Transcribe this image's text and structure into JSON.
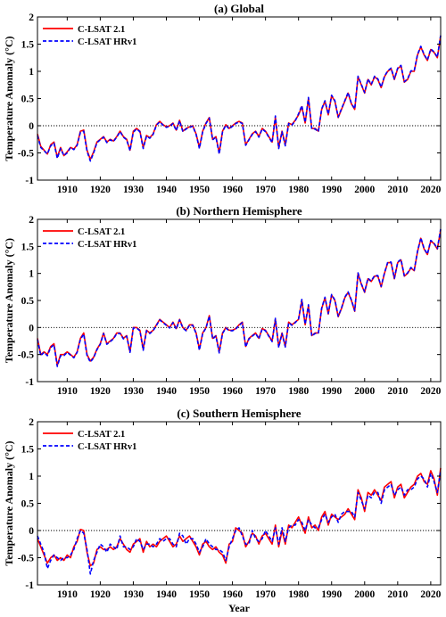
{
  "figure": {
    "ylabel": "Temperature Anomaly (°C)",
    "xlabel": "Year",
    "legend": [
      "C-LSAT 2.1",
      "C-LSAT HRv1"
    ],
    "colors": {
      "series1": "#ff0000",
      "series2": "#0000ff",
      "zero_line": "#000000"
    }
  },
  "chart_data": [
    {
      "type": "line",
      "title": "(a) Global",
      "xlabel": "",
      "ylabel": "Temperature Anomaly (°C)",
      "xlim": [
        1901,
        2023
      ],
      "ylim": [
        -1,
        2
      ],
      "xticks": [
        1910,
        1920,
        1930,
        1940,
        1950,
        1960,
        1970,
        1980,
        1990,
        2000,
        2010,
        2020
      ],
      "yticks": [
        -1,
        -0.5,
        0,
        0.5,
        1,
        1.5,
        2
      ],
      "legend_position": "top-left",
      "reference_line": 0,
      "x_start": 1901,
      "series": [
        {
          "name": "C-LSAT 2.1",
          "color": "#ff0000",
          "style": "solid",
          "values": [
            -0.15,
            -0.38,
            -0.45,
            -0.52,
            -0.35,
            -0.3,
            -0.58,
            -0.4,
            -0.55,
            -0.48,
            -0.4,
            -0.43,
            -0.35,
            -0.1,
            -0.08,
            -0.45,
            -0.62,
            -0.48,
            -0.3,
            -0.25,
            -0.2,
            -0.3,
            -0.25,
            -0.28,
            -0.2,
            -0.1,
            -0.2,
            -0.25,
            -0.45,
            -0.1,
            -0.05,
            -0.1,
            -0.4,
            -0.18,
            -0.22,
            -0.15,
            0.02,
            0.08,
            0.02,
            -0.02,
            0.0,
            0.05,
            -0.08,
            0.1,
            -0.1,
            -0.05,
            -0.02,
            0.0,
            -0.15,
            -0.4,
            -0.1,
            0.05,
            0.15,
            -0.25,
            -0.2,
            -0.5,
            -0.1,
            0.02,
            -0.05,
            0.0,
            0.05,
            0.08,
            0.05,
            -0.35,
            -0.25,
            -0.15,
            -0.1,
            -0.2,
            -0.05,
            -0.1,
            -0.2,
            -0.3,
            0.15,
            -0.4,
            -0.1,
            -0.35,
            0.05,
            0.02,
            0.1,
            0.2,
            0.35,
            0.05,
            0.5,
            -0.05,
            -0.05,
            -0.1,
            0.3,
            0.45,
            0.2,
            0.55,
            0.45,
            0.15,
            0.3,
            0.45,
            0.6,
            0.4,
            0.3,
            0.9,
            0.75,
            0.6,
            0.85,
            0.75,
            0.9,
            0.85,
            0.7,
            0.9,
            1.0,
            1.05,
            0.85,
            1.05,
            1.1,
            0.8,
            0.85,
            1.0,
            1.0,
            1.3,
            1.45,
            1.3,
            1.2,
            1.4,
            1.35,
            1.25,
            1.65
          ]
        },
        {
          "name": "C-LSAT HRv1",
          "color": "#0000ff",
          "style": "dashed",
          "values": [
            -0.18,
            -0.4,
            -0.46,
            -0.52,
            -0.37,
            -0.32,
            -0.6,
            -0.42,
            -0.55,
            -0.5,
            -0.4,
            -0.44,
            -0.36,
            -0.12,
            -0.1,
            -0.47,
            -0.65,
            -0.5,
            -0.31,
            -0.26,
            -0.21,
            -0.31,
            -0.26,
            -0.29,
            -0.21,
            -0.11,
            -0.21,
            -0.26,
            -0.46,
            -0.12,
            -0.06,
            -0.11,
            -0.42,
            -0.19,
            -0.23,
            -0.16,
            0.01,
            0.07,
            0.01,
            -0.03,
            -0.01,
            0.04,
            -0.09,
            0.09,
            -0.11,
            -0.06,
            -0.03,
            -0.01,
            -0.16,
            -0.42,
            -0.11,
            0.04,
            0.14,
            -0.26,
            -0.21,
            -0.52,
            -0.11,
            0.01,
            -0.06,
            -0.01,
            0.04,
            0.07,
            0.04,
            -0.36,
            -0.26,
            -0.16,
            -0.11,
            -0.21,
            -0.06,
            -0.11,
            -0.21,
            -0.31,
            0.18,
            -0.42,
            -0.11,
            -0.37,
            0.04,
            0.01,
            0.09,
            0.22,
            0.37,
            0.06,
            0.52,
            -0.06,
            -0.06,
            -0.11,
            0.31,
            0.46,
            0.21,
            0.56,
            0.46,
            0.16,
            0.31,
            0.46,
            0.61,
            0.41,
            0.31,
            0.91,
            0.76,
            0.61,
            0.86,
            0.76,
            0.91,
            0.86,
            0.71,
            0.91,
            1.01,
            1.06,
            0.86,
            1.06,
            1.11,
            0.81,
            0.86,
            1.01,
            1.01,
            1.31,
            1.46,
            1.31,
            1.21,
            1.41,
            1.36,
            1.26,
            1.66
          ]
        }
      ]
    },
    {
      "type": "line",
      "title": "(b) Northern Hemisphere",
      "xlabel": "",
      "ylabel": "Temperature Anomaly (°C)",
      "xlim": [
        1901,
        2023
      ],
      "ylim": [
        -1,
        2
      ],
      "xticks": [
        1910,
        1920,
        1930,
        1940,
        1950,
        1960,
        1970,
        1980,
        1990,
        2000,
        2010,
        2020
      ],
      "yticks": [
        -1,
        -0.5,
        0,
        0.5,
        1,
        1.5,
        2
      ],
      "legend_position": "top-left",
      "reference_line": 0,
      "x_start": 1901,
      "series": [
        {
          "name": "C-LSAT 2.1",
          "color": "#ff0000",
          "style": "solid",
          "values": [
            -0.2,
            -0.5,
            -0.45,
            -0.5,
            -0.35,
            -0.3,
            -0.7,
            -0.5,
            -0.5,
            -0.45,
            -0.5,
            -0.55,
            -0.45,
            -0.2,
            -0.1,
            -0.5,
            -0.62,
            -0.55,
            -0.4,
            -0.3,
            -0.1,
            -0.3,
            -0.25,
            -0.2,
            -0.1,
            -0.1,
            -0.2,
            -0.15,
            -0.45,
            0.0,
            0.0,
            -0.05,
            -0.4,
            -0.05,
            -0.1,
            -0.05,
            0.05,
            0.15,
            0.1,
            0.05,
            0.0,
            0.1,
            -0.02,
            0.15,
            0.0,
            -0.05,
            0.05,
            0.05,
            -0.1,
            -0.4,
            -0.1,
            0.0,
            0.22,
            -0.2,
            -0.15,
            -0.45,
            -0.1,
            0.0,
            -0.05,
            -0.05,
            -0.02,
            0.05,
            0.1,
            -0.35,
            -0.2,
            -0.15,
            -0.1,
            -0.2,
            -0.02,
            -0.05,
            -0.15,
            -0.25,
            0.15,
            -0.35,
            -0.1,
            -0.35,
            0.1,
            0.05,
            0.1,
            0.15,
            0.5,
            0.05,
            0.4,
            -0.15,
            -0.1,
            -0.1,
            0.35,
            0.55,
            0.25,
            0.6,
            0.5,
            0.2,
            0.35,
            0.55,
            0.65,
            0.5,
            0.3,
            1.0,
            0.8,
            0.65,
            0.9,
            0.85,
            0.95,
            0.95,
            0.75,
            1.0,
            1.2,
            1.2,
            0.9,
            1.2,
            1.25,
            0.95,
            1.0,
            1.1,
            1.05,
            1.4,
            1.65,
            1.45,
            1.35,
            1.6,
            1.55,
            1.45,
            1.8
          ]
        },
        {
          "name": "C-LSAT HRv1",
          "color": "#0000ff",
          "style": "dashed",
          "values": [
            -0.22,
            -0.52,
            -0.46,
            -0.52,
            -0.37,
            -0.32,
            -0.72,
            -0.52,
            -0.52,
            -0.46,
            -0.51,
            -0.56,
            -0.46,
            -0.22,
            -0.12,
            -0.52,
            -0.64,
            -0.56,
            -0.41,
            -0.31,
            -0.11,
            -0.31,
            -0.26,
            -0.21,
            -0.11,
            -0.11,
            -0.21,
            -0.16,
            -0.46,
            -0.01,
            -0.01,
            -0.06,
            -0.42,
            -0.06,
            -0.11,
            -0.06,
            0.04,
            0.14,
            0.09,
            0.04,
            -0.01,
            0.09,
            -0.03,
            0.14,
            -0.01,
            -0.06,
            0.04,
            0.04,
            -0.11,
            -0.42,
            -0.11,
            -0.01,
            0.21,
            -0.21,
            -0.16,
            -0.47,
            -0.11,
            -0.01,
            -0.06,
            -0.06,
            -0.03,
            0.04,
            0.09,
            -0.36,
            -0.21,
            -0.16,
            -0.11,
            -0.21,
            -0.03,
            -0.06,
            -0.16,
            -0.26,
            0.17,
            -0.37,
            -0.11,
            -0.36,
            0.09,
            0.04,
            0.09,
            0.16,
            0.52,
            0.06,
            0.42,
            -0.16,
            -0.11,
            -0.11,
            0.36,
            0.56,
            0.26,
            0.61,
            0.51,
            0.21,
            0.36,
            0.56,
            0.66,
            0.51,
            0.31,
            1.01,
            0.81,
            0.66,
            0.91,
            0.86,
            0.96,
            0.96,
            0.76,
            1.01,
            1.21,
            1.21,
            0.91,
            1.21,
            1.26,
            0.96,
            1.01,
            1.11,
            1.06,
            1.41,
            1.66,
            1.46,
            1.36,
            1.61,
            1.56,
            1.46,
            1.82
          ]
        }
      ]
    },
    {
      "type": "line",
      "title": "(c) Southern Hemisphere",
      "xlabel": "Year",
      "ylabel": "Temperature Anomaly (°C)",
      "xlim": [
        1901,
        2023
      ],
      "ylim": [
        -1,
        2
      ],
      "xticks": [
        1910,
        1920,
        1930,
        1940,
        1950,
        1960,
        1970,
        1980,
        1990,
        2000,
        2010,
        2020
      ],
      "yticks": [
        -1,
        -0.5,
        0,
        0.5,
        1,
        1.5,
        2
      ],
      "legend_position": "top-left",
      "reference_line": 0,
      "x_start": 1901,
      "series": [
        {
          "name": "C-LSAT 2.1",
          "color": "#ff0000",
          "style": "solid",
          "values": [
            -0.15,
            -0.3,
            -0.45,
            -0.6,
            -0.5,
            -0.45,
            -0.55,
            -0.5,
            -0.55,
            -0.45,
            -0.5,
            -0.3,
            -0.2,
            0.02,
            0.0,
            -0.4,
            -0.65,
            -0.6,
            -0.35,
            -0.3,
            -0.35,
            -0.35,
            -0.3,
            -0.35,
            -0.3,
            -0.15,
            -0.25,
            -0.35,
            -0.4,
            -0.25,
            -0.2,
            -0.15,
            -0.4,
            -0.2,
            -0.3,
            -0.25,
            -0.3,
            -0.2,
            -0.15,
            -0.1,
            -0.2,
            -0.3,
            -0.25,
            -0.1,
            -0.2,
            -0.15,
            -0.1,
            -0.2,
            -0.3,
            -0.45,
            -0.25,
            -0.2,
            -0.3,
            -0.35,
            -0.3,
            -0.4,
            -0.45,
            -0.6,
            -0.25,
            -0.2,
            0.05,
            0.0,
            -0.05,
            -0.3,
            -0.2,
            -0.05,
            -0.1,
            -0.25,
            -0.1,
            -0.05,
            -0.15,
            -0.25,
            0.1,
            -0.3,
            0.0,
            -0.25,
            0.1,
            0.05,
            0.15,
            0.25,
            0.1,
            -0.05,
            0.25,
            0.05,
            0.1,
            0.0,
            0.25,
            0.35,
            0.1,
            0.3,
            0.25,
            0.2,
            0.25,
            0.3,
            0.4,
            0.3,
            0.2,
            0.75,
            0.6,
            0.35,
            0.7,
            0.65,
            0.75,
            0.65,
            0.55,
            0.8,
            0.85,
            0.9,
            0.6,
            0.8,
            0.85,
            0.6,
            0.7,
            0.8,
            0.85,
            1.0,
            1.05,
            0.9,
            0.85,
            1.1,
            0.95,
            0.65,
            1.15
          ]
        },
        {
          "name": "C-LSAT HRv1",
          "color": "#0000ff",
          "style": "dashed",
          "values": [
            -0.1,
            -0.25,
            -0.4,
            -0.7,
            -0.55,
            -0.45,
            -0.5,
            -0.55,
            -0.5,
            -0.5,
            -0.45,
            -0.35,
            -0.15,
            0.0,
            -0.05,
            -0.35,
            -0.8,
            -0.55,
            -0.4,
            -0.25,
            -0.3,
            -0.4,
            -0.25,
            -0.3,
            -0.35,
            -0.1,
            -0.3,
            -0.3,
            -0.35,
            -0.3,
            -0.15,
            -0.2,
            -0.35,
            -0.25,
            -0.25,
            -0.3,
            -0.25,
            -0.15,
            -0.2,
            -0.15,
            -0.15,
            -0.25,
            -0.3,
            -0.05,
            -0.1,
            -0.25,
            -0.15,
            -0.15,
            -0.25,
            -0.4,
            -0.3,
            -0.15,
            -0.25,
            -0.3,
            -0.35,
            -0.35,
            -0.4,
            -0.55,
            -0.3,
            -0.15,
            0.0,
            0.05,
            -0.1,
            -0.25,
            -0.25,
            0.0,
            -0.15,
            -0.2,
            -0.15,
            0.0,
            -0.1,
            -0.2,
            0.05,
            -0.25,
            0.05,
            -0.2,
            0.05,
            0.1,
            0.1,
            0.2,
            0.15,
            0.0,
            0.2,
            0.1,
            0.05,
            0.05,
            0.2,
            0.3,
            0.15,
            0.25,
            0.3,
            0.15,
            0.3,
            0.35,
            0.35,
            0.35,
            0.25,
            0.7,
            0.55,
            0.4,
            0.65,
            0.6,
            0.7,
            0.7,
            0.5,
            0.75,
            0.8,
            0.85,
            0.65,
            0.75,
            0.8,
            0.65,
            0.75,
            0.75,
            0.8,
            0.95,
            1.0,
            0.95,
            0.8,
            1.05,
            0.9,
            0.7,
            1.1
          ]
        }
      ]
    }
  ]
}
